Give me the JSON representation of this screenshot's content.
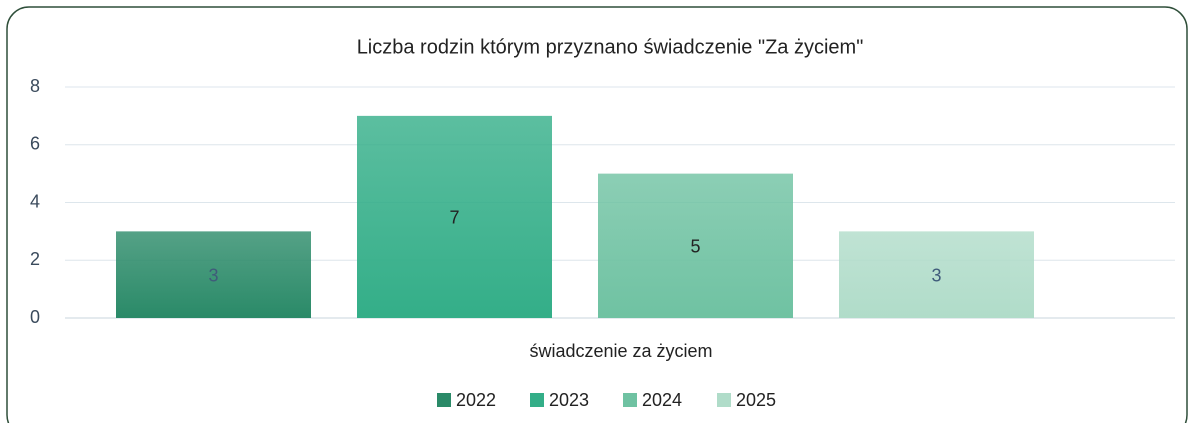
{
  "chart_data": {
    "type": "bar",
    "title": "Liczba rodzin którym przyznano świadczenie \"Za życiem\"",
    "categories": [
      "świadczenie za życiem"
    ],
    "series": [
      {
        "name": "2022",
        "color": "#2a8a68",
        "values": [
          3
        ]
      },
      {
        "name": "2023",
        "color": "#33ae88",
        "values": [
          7
        ]
      },
      {
        "name": "2024",
        "color": "#6fc2a2",
        "values": [
          5
        ]
      },
      {
        "name": "2025",
        "color": "#b0dcc9",
        "values": [
          3
        ]
      }
    ],
    "ylim": [
      0,
      8
    ],
    "yticks": [
      0,
      2,
      4,
      6,
      8
    ],
    "grid": true,
    "legend": "bottom"
  }
}
